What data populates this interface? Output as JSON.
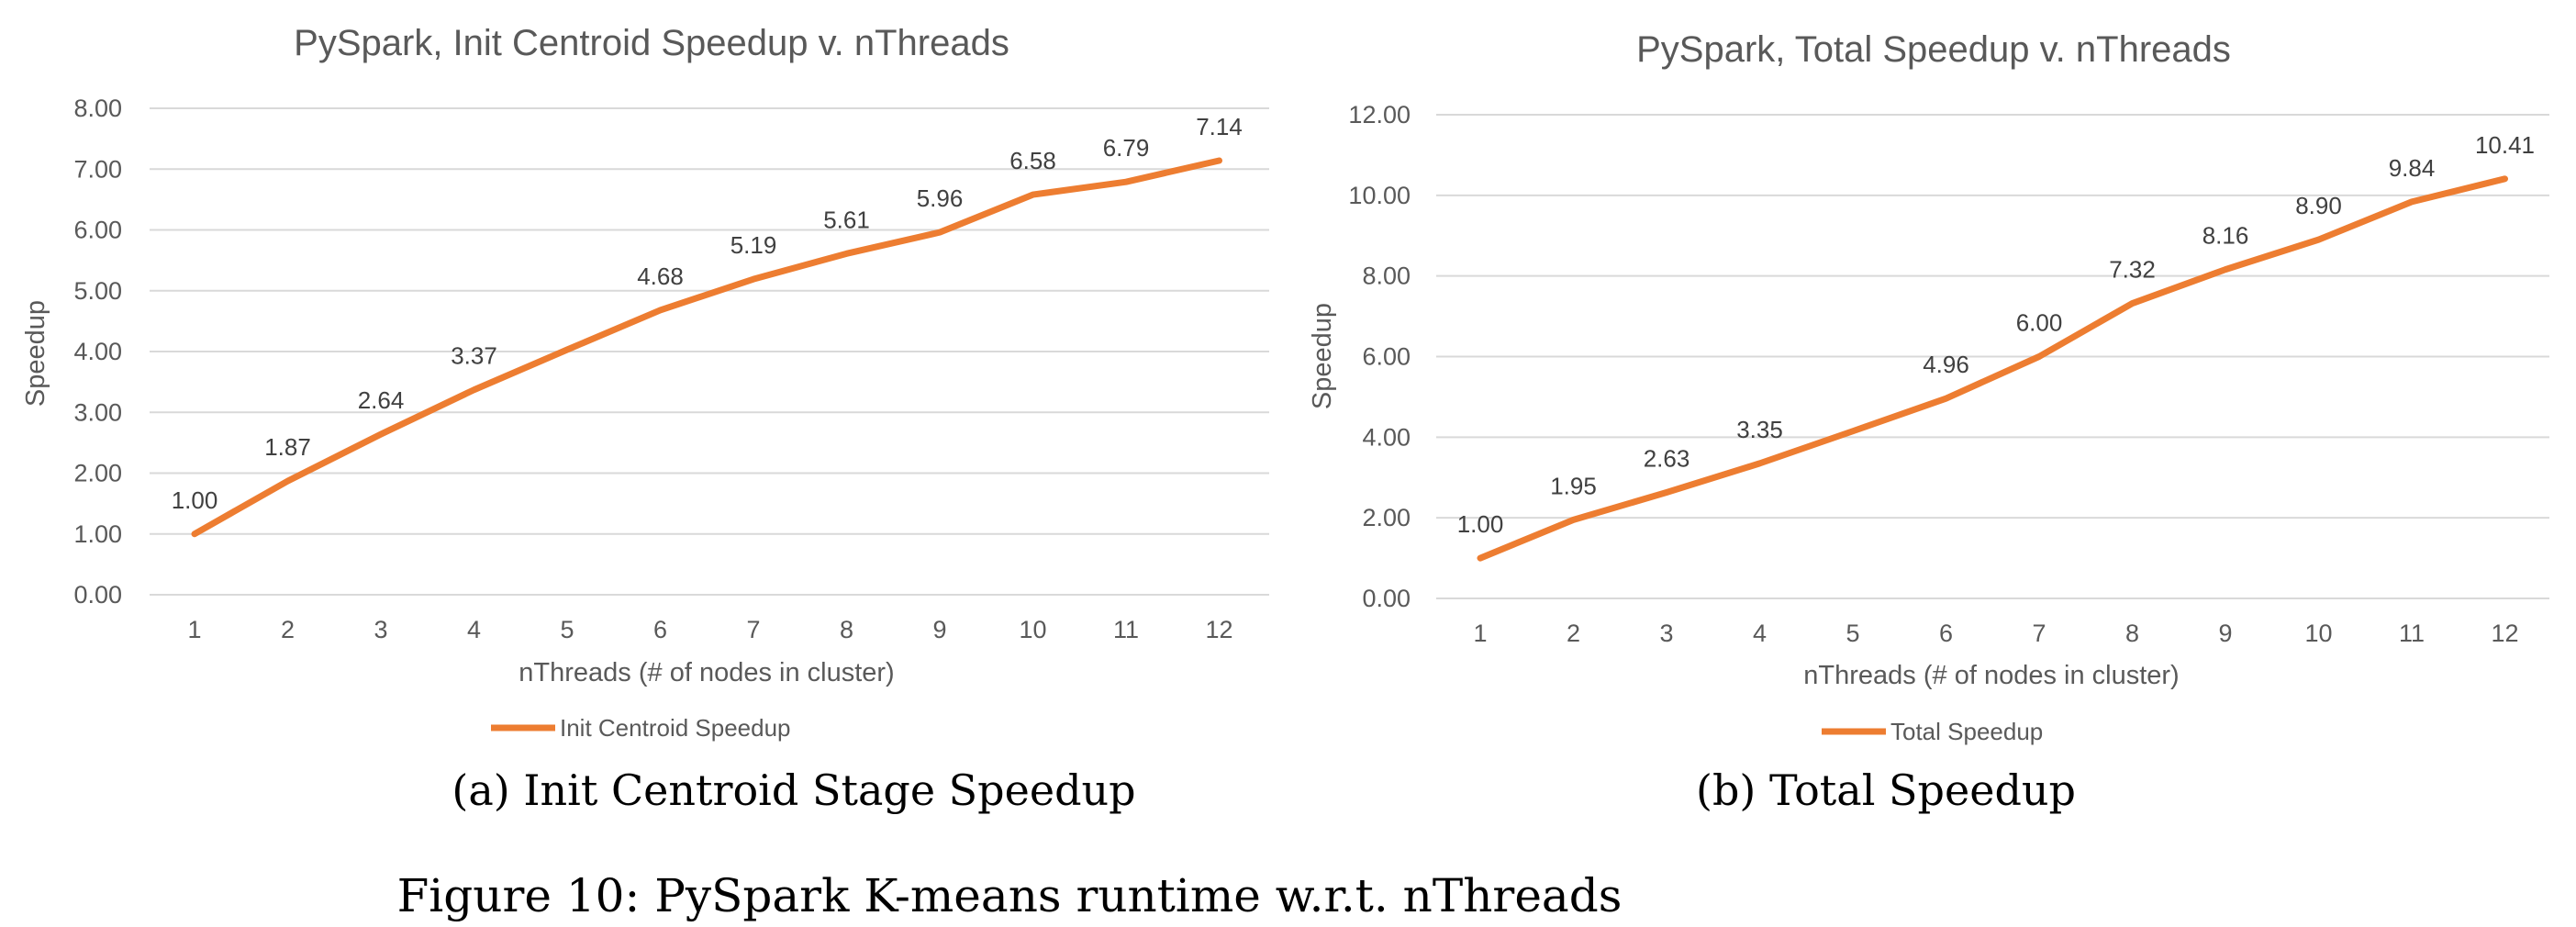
{
  "figure": {
    "caption": "Figure 10: PySpark K-means runtime w.r.t. nThreads"
  },
  "panels": [
    {
      "subcaption": "(a) Init Centroid Stage Speedup"
    },
    {
      "subcaption": "(b) Total Speedup"
    }
  ],
  "chart_data": [
    {
      "type": "line",
      "title": "PySpark, Init Centroid Speedup v. nThreads",
      "xlabel": "nThreads (# of nodes in cluster)",
      "ylabel": "Speedup",
      "categories": [
        "1",
        "2",
        "3",
        "4",
        "5",
        "6",
        "7",
        "8",
        "9",
        "10",
        "11",
        "12"
      ],
      "ylim": [
        0,
        8
      ],
      "yticks": [
        "0.00",
        "1.00",
        "2.00",
        "3.00",
        "4.00",
        "5.00",
        "6.00",
        "7.00",
        "8.00"
      ],
      "grid": true,
      "legend": "bottom",
      "color": "#ED7D31",
      "series": [
        {
          "name": "Init Centroid Speedup",
          "values": [
            1.0,
            1.87,
            2.64,
            3.37,
            4.03,
            4.68,
            5.19,
            5.61,
            5.96,
            6.58,
            6.79,
            7.14
          ],
          "labels": [
            "1.00",
            "1.87",
            "2.64",
            "3.37",
            "",
            "4.68",
            "5.19",
            "5.61",
            "5.96",
            "6.58",
            "6.79",
            "7.14"
          ]
        }
      ]
    },
    {
      "type": "line",
      "title": "PySpark, Total Speedup v. nThreads",
      "xlabel": "nThreads (# of nodes in cluster)",
      "ylabel": "Speedup",
      "categories": [
        "1",
        "2",
        "3",
        "4",
        "5",
        "6",
        "7",
        "8",
        "9",
        "10",
        "11",
        "12"
      ],
      "ylim": [
        0,
        12
      ],
      "yticks": [
        "0.00",
        "2.00",
        "4.00",
        "6.00",
        "8.00",
        "10.00",
        "12.00"
      ],
      "grid": true,
      "legend": "bottom",
      "color": "#ED7D31",
      "series": [
        {
          "name": "Total Speedup",
          "values": [
            1.0,
            1.95,
            2.63,
            3.35,
            4.15,
            4.96,
            6.0,
            7.32,
            8.16,
            8.9,
            9.84,
            10.41
          ],
          "labels": [
            "1.00",
            "1.95",
            "2.63",
            "3.35",
            "",
            "4.96",
            "6.00",
            "7.32",
            "8.16",
            "8.90",
            "9.84",
            "10.41"
          ]
        }
      ]
    }
  ]
}
